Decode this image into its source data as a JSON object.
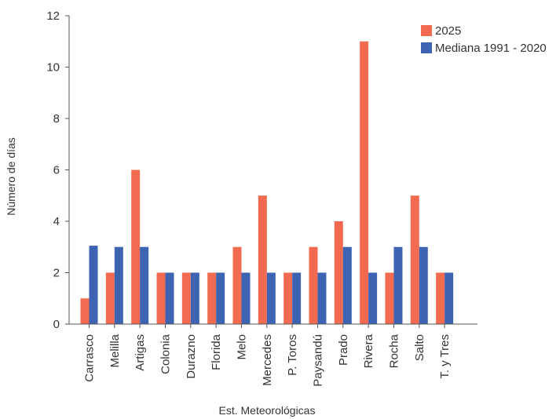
{
  "chart_data": {
    "type": "bar",
    "title": "",
    "xlabel": "Est. Meteorológicas",
    "ylabel": "Número de días",
    "ylim": [
      0,
      12
    ],
    "yticks": [
      0,
      2,
      4,
      6,
      8,
      10,
      12
    ],
    "grid": false,
    "legend_position": "top-right",
    "categories": [
      "Carrasco",
      "Melilla",
      "Artigas",
      "Colonia",
      "Durazno",
      "Florida",
      "Melo",
      "Mercedes",
      "P. Toros",
      "Paysandú",
      "Prado",
      "Rivera",
      "Rocha",
      "Salto",
      "T. y Tres"
    ],
    "series": [
      {
        "name": "2025",
        "color": "#f26b50",
        "values": [
          1,
          2,
          6,
          2,
          2,
          2,
          3,
          5,
          2,
          3,
          4,
          11,
          2,
          5,
          2
        ]
      },
      {
        "name": "Mediana 1991 - 2020",
        "color": "#3d63b3",
        "values": [
          3.05,
          3,
          3,
          2,
          2,
          2,
          2,
          2,
          2,
          2,
          3,
          2,
          3,
          3,
          2
        ]
      }
    ]
  }
}
